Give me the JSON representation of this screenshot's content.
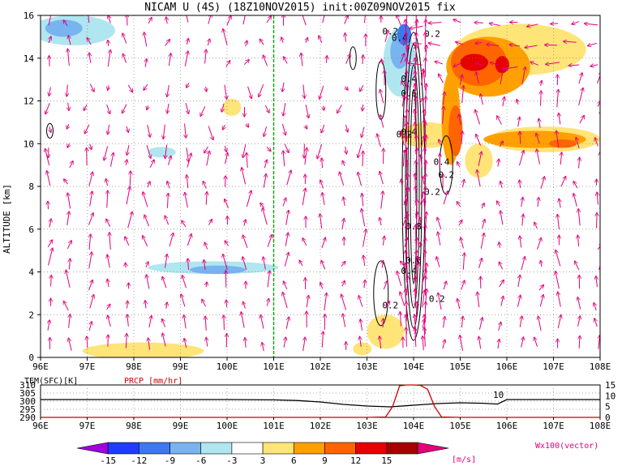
{
  "title": "NICAM U (4S) (18Z10NOV2015) init:00Z09NOV2015 fix",
  "chart_data": [
    {
      "type": "heatmap",
      "panel": "main",
      "ylabel": "ALTITUDE [km]",
      "x_ticks": [
        "96E",
        "97E",
        "98E",
        "99E",
        "100E",
        "101E",
        "102E",
        "103E",
        "104E",
        "105E",
        "106E",
        "107E",
        "108E"
      ],
      "y_ticks": [
        "0",
        "2",
        "4",
        "6",
        "8",
        "10",
        "12",
        "14",
        "16"
      ],
      "xlim": [
        96,
        108
      ],
      "ylim": [
        0,
        16
      ],
      "grid": true,
      "shading_variable": "U wind [m/s]",
      "vector_label": "Wx100(vector)",
      "vertical_line_lon": 101,
      "vertical_line_color": "#00aa00",
      "shaded_regions": [
        {
          "level": -15,
          "label": "U < -12 band, lon 96-97.8, alt 14.6-16"
        },
        {
          "level": -12,
          "label": "lon 103.5-104.2, alt 12-16"
        },
        {
          "level": -9,
          "label": "lon 99-100.5, alt 3.8-4.4"
        },
        {
          "level": -6,
          "label": "lon 97-103, alt 3.5-6.5"
        },
        {
          "level": -3,
          "label": "lon 96-103, alt 1.5-16"
        },
        {
          "level": 3,
          "label": "lon 97.2-99.5, alt 0-0.6"
        },
        {
          "level": 6,
          "label": "lon 104.7-106.5, alt 10-15.5"
        },
        {
          "level": 9,
          "label": "lon 105-106, alt 12.5-15"
        },
        {
          "level": 12,
          "label": "lon 105.3-106, alt 13.4-14.3"
        }
      ],
      "contour_labels": [
        "0.2",
        "0.4",
        "0.4",
        "0.6",
        "0.2",
        "0.4",
        "0.2",
        "0.4",
        "0.2",
        "0.2",
        "0.8",
        "0.6",
        "0.4",
        "0.2",
        "0.2"
      ],
      "contour_peak": {
        "lon": 104.0,
        "alt": 8.0
      }
    },
    {
      "type": "line",
      "panel": "surface",
      "series": [
        {
          "name": "TEM(SFC)[K]",
          "color": "#000000",
          "x": [
            96,
            97,
            98,
            99,
            100,
            101,
            101.5,
            102,
            102.5,
            103,
            103.5,
            104,
            104.5,
            105,
            105.5,
            105.8,
            106,
            106.5,
            107,
            108
          ],
          "y": [
            301,
            301,
            301,
            301,
            301,
            300.8,
            300.4,
            299.5,
            298,
            297,
            296.5,
            297.5,
            298.5,
            299,
            298.7,
            298.2,
            301,
            301,
            301,
            301
          ]
        },
        {
          "name": "PRCP [mm/hr]",
          "color": "#cc0000",
          "x": [
            96,
            103,
            103.4,
            103.55,
            103.7,
            103.85,
            104,
            104.15,
            104.3,
            104.45,
            104.6,
            105,
            108
          ],
          "y": [
            0,
            0,
            0.2,
            5,
            14.6,
            15,
            15,
            14.8,
            13,
            5,
            0.2,
            0,
            0
          ]
        }
      ],
      "y_ticks_left": [
        "290",
        "295",
        "300",
        "305",
        "310"
      ],
      "y_ticks_right": [
        "0",
        "5",
        "10",
        "15"
      ],
      "ylim_left": [
        290,
        310
      ],
      "ylim_right": [
        0,
        15
      ],
      "annotation": "10",
      "x_ticks": [
        "96E",
        "97E",
        "98E",
        "99E",
        "100E",
        "101E",
        "102E",
        "103E",
        "104E",
        "105E",
        "106E",
        "107E",
        "108E"
      ]
    }
  ],
  "colorbar": {
    "ticks": [
      "-15",
      "-12",
      "-9",
      "-6",
      "-3",
      "3",
      "6",
      "9",
      "12",
      "15"
    ],
    "unit": "[m/s]",
    "colors": [
      "#a000e0",
      "#1e3cff",
      "#3c78f0",
      "#78b4f0",
      "#afe6f0",
      "#ffffff",
      "#ffe478",
      "#ffa000",
      "#ff6400",
      "#e60000",
      "#a50000"
    ],
    "end_high_color": "#e0007a"
  }
}
